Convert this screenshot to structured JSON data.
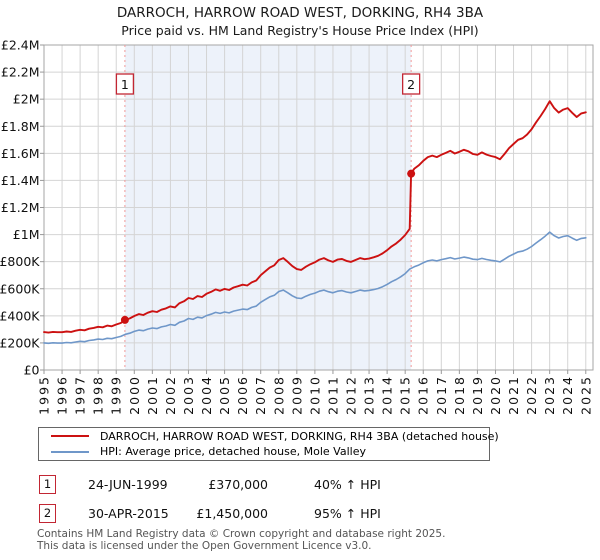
{
  "title": "DARROCH, HARROW ROAD WEST, DORKING, RH4 3BA",
  "subtitle": "Price paid vs. HM Land Registry's House Price Index (HPI)",
  "chart_data": {
    "type": "line",
    "title": "DARROCH, HARROW ROAD WEST, DORKING, RH4 3BA — Price paid vs. HPI",
    "xlim": [
      1995,
      2025.4
    ],
    "ylim_gbp_thousands": [
      0,
      2400
    ],
    "grid": true,
    "legend_position": "bottom",
    "x_ticks_years": [
      1995,
      1996,
      1997,
      1998,
      1999,
      2000,
      2001,
      2002,
      2003,
      2004,
      2005,
      2006,
      2007,
      2008,
      2009,
      2010,
      2011,
      2012,
      2013,
      2014,
      2015,
      2016,
      2017,
      2018,
      2019,
      2020,
      2021,
      2022,
      2023,
      2024,
      2025
    ],
    "y_ticks": [
      {
        "k": 0,
        "label": "£0"
      },
      {
        "k": 200,
        "label": "£200K"
      },
      {
        "k": 400,
        "label": "£400K"
      },
      {
        "k": 600,
        "label": "£600K"
      },
      {
        "k": 800,
        "label": "£800K"
      },
      {
        "k": 1000,
        "label": "£1M"
      },
      {
        "k": 1200,
        "label": "£1.2M"
      },
      {
        "k": 1400,
        "label": "£1.4M"
      },
      {
        "k": 1600,
        "label": "£1.6M"
      },
      {
        "k": 1800,
        "label": "£1.8M"
      },
      {
        "k": 2000,
        "label": "£2M"
      },
      {
        "k": 2200,
        "label": "£2.2M"
      },
      {
        "k": 2400,
        "label": "£2.4M"
      }
    ],
    "shaded_span": {
      "from_year": 1999.48,
      "to_year": 2015.33,
      "color": "#edf2fa"
    },
    "sales": [
      {
        "n": "1",
        "year": 1999.48,
        "price_gbp_thousands": 370
      },
      {
        "n": "2",
        "year": 2015.33,
        "price_gbp_thousands": 1450
      }
    ],
    "colors": {
      "grid": "#d4d4d4",
      "plot_border": "#a6a6a6",
      "tick": "#999999",
      "sale_dashed_line": "#f19999",
      "sale_flag_border": "#c22633",
      "sale_dot": "#cc1111"
    },
    "series": [
      {
        "name": "DARROCH, HARROW ROAD WEST, DORKING, RH4 3BA (detached house)",
        "color": "#cc1111",
        "x": [
          1995,
          1995.25,
          1995.5,
          1995.75,
          1996,
          1996.25,
          1996.5,
          1996.75,
          1997,
          1997.25,
          1997.5,
          1997.75,
          1998,
          1998.25,
          1998.5,
          1998.75,
          1999,
          1999.25,
          1999.5,
          1999.75,
          2000,
          2000.25,
          2000.5,
          2000.75,
          2001,
          2001.25,
          2001.5,
          2001.75,
          2002,
          2002.25,
          2002.5,
          2002.75,
          2003,
          2003.25,
          2003.5,
          2003.75,
          2004,
          2004.25,
          2004.5,
          2004.75,
          2005,
          2005.25,
          2005.5,
          2005.75,
          2006,
          2006.25,
          2006.5,
          2006.75,
          2007,
          2007.25,
          2007.5,
          2007.75,
          2008,
          2008.25,
          2008.5,
          2008.75,
          2009,
          2009.25,
          2009.5,
          2009.75,
          2010,
          2010.25,
          2010.5,
          2010.75,
          2011,
          2011.25,
          2011.5,
          2011.75,
          2012,
          2012.25,
          2012.5,
          2012.75,
          2013,
          2013.25,
          2013.5,
          2013.75,
          2014,
          2014.25,
          2014.5,
          2014.75,
          2015,
          2015.25,
          2015.33,
          2015.5,
          2015.75,
          2016,
          2016.25,
          2016.5,
          2016.75,
          2017,
          2017.25,
          2017.5,
          2017.75,
          2018,
          2018.25,
          2018.5,
          2018.75,
          2019,
          2019.25,
          2019.5,
          2019.75,
          2020,
          2020.25,
          2020.5,
          2020.75,
          2021,
          2021.25,
          2021.5,
          2021.75,
          2022,
          2022.25,
          2022.5,
          2022.75,
          2023,
          2023.25,
          2023.5,
          2023.75,
          2024,
          2024.25,
          2024.5,
          2024.75,
          2025
        ],
        "y_gbp_thousands": [
          280,
          276,
          281,
          279,
          279,
          284,
          281,
          290,
          297,
          293,
          305,
          311,
          319,
          315,
          328,
          323,
          336,
          347,
          370,
          381,
          399,
          413,
          406,
          423,
          434,
          428,
          445,
          455,
          470,
          462,
          493,
          507,
          532,
          524,
          546,
          539,
          563,
          577,
          595,
          585,
          599,
          591,
          609,
          619,
          630,
          624,
          647,
          661,
          700,
          728,
          756,
          773,
          812,
          826,
          798,
          767,
          745,
          739,
          763,
          781,
          795,
          815,
          826,
          809,
          798,
          815,
          820,
          806,
          798,
          812,
          826,
          818,
          823,
          832,
          843,
          861,
          885,
          913,
          935,
          963,
          997,
          1043,
          1450,
          1486,
          1511,
          1544,
          1572,
          1583,
          1572,
          1589,
          1603,
          1619,
          1599,
          1611,
          1626,
          1615,
          1595,
          1589,
          1607,
          1591,
          1580,
          1572,
          1556,
          1595,
          1638,
          1669,
          1700,
          1712,
          1739,
          1778,
          1829,
          1876,
          1927,
          1985,
          1934,
          1901,
          1923,
          1934,
          1899,
          1868,
          1895,
          1903
        ]
      },
      {
        "name": "HPI: Average price, detached house, Mole Valley",
        "color": "#6f97c9",
        "x": [
          1995,
          1995.25,
          1995.5,
          1995.75,
          1996,
          1996.25,
          1996.5,
          1996.75,
          1997,
          1997.25,
          1997.5,
          1997.75,
          1998,
          1998.25,
          1998.5,
          1998.75,
          1999,
          1999.25,
          1999.5,
          1999.75,
          2000,
          2000.25,
          2000.5,
          2000.75,
          2001,
          2001.25,
          2001.5,
          2001.75,
          2002,
          2002.25,
          2002.5,
          2002.75,
          2003,
          2003.25,
          2003.5,
          2003.75,
          2004,
          2004.25,
          2004.5,
          2004.75,
          2005,
          2005.25,
          2005.5,
          2005.75,
          2006,
          2006.25,
          2006.5,
          2006.75,
          2007,
          2007.25,
          2007.5,
          2007.75,
          2008,
          2008.25,
          2008.5,
          2008.75,
          2009,
          2009.25,
          2009.5,
          2009.75,
          2010,
          2010.25,
          2010.5,
          2010.75,
          2011,
          2011.25,
          2011.5,
          2011.75,
          2012,
          2012.25,
          2012.5,
          2012.75,
          2013,
          2013.25,
          2013.5,
          2013.75,
          2014,
          2014.25,
          2014.5,
          2014.75,
          2015,
          2015.25,
          2015.5,
          2015.75,
          2016,
          2016.25,
          2016.5,
          2016.75,
          2017,
          2017.25,
          2017.5,
          2017.75,
          2018,
          2018.25,
          2018.5,
          2018.75,
          2019,
          2019.25,
          2019.5,
          2019.75,
          2020,
          2020.25,
          2020.5,
          2020.75,
          2021,
          2021.25,
          2021.5,
          2021.75,
          2022,
          2022.25,
          2022.5,
          2022.75,
          2023,
          2023.25,
          2023.5,
          2023.75,
          2024,
          2024.25,
          2024.5,
          2024.75,
          2025
        ],
        "y_gbp_thousands": [
          200,
          197,
          201,
          199,
          199,
          203,
          201,
          207,
          212,
          209,
          218,
          222,
          228,
          225,
          234,
          231,
          240,
          248,
          264,
          272,
          285,
          295,
          290,
          302,
          310,
          306,
          318,
          325,
          336,
          330,
          352,
          362,
          380,
          374,
          390,
          385,
          402,
          412,
          425,
          418,
          428,
          422,
          435,
          442,
          450,
          446,
          462,
          472,
          500,
          520,
          540,
          552,
          580,
          590,
          570,
          548,
          532,
          528,
          545,
          558,
          568,
          582,
          590,
          578,
          570,
          582,
          586,
          576,
          570,
          580,
          590,
          584,
          588,
          594,
          602,
          615,
          632,
          652,
          668,
          688,
          712,
          745,
          762,
          775,
          792,
          806,
          812,
          806,
          815,
          822,
          830,
          820,
          826,
          834,
          828,
          818,
          815,
          824,
          816,
          810,
          806,
          798,
          818,
          840,
          856,
          872,
          878,
          892,
          912,
          938,
          962,
          988,
          1018,
          992,
          975,
          986,
          992,
          974,
          958,
          972,
          976
        ]
      }
    ]
  },
  "legend": {
    "items": [
      {
        "label": "DARROCH, HARROW ROAD WEST, DORKING, RH4 3BA (detached house)"
      },
      {
        "label": "HPI: Average price, detached house, Mole Valley"
      }
    ]
  },
  "transactions": [
    {
      "n": "1",
      "date": "24-JUN-1999",
      "price": "£370,000",
      "hpi": "40% ↑ HPI"
    },
    {
      "n": "2",
      "date": "30-APR-2015",
      "price": "£1,450,000",
      "hpi": "95% ↑ HPI"
    }
  ],
  "footer": {
    "line1": "Contains HM Land Registry data © Crown copyright and database right 2025.",
    "line2": "This data is licensed under the Open Government Licence v3.0."
  }
}
